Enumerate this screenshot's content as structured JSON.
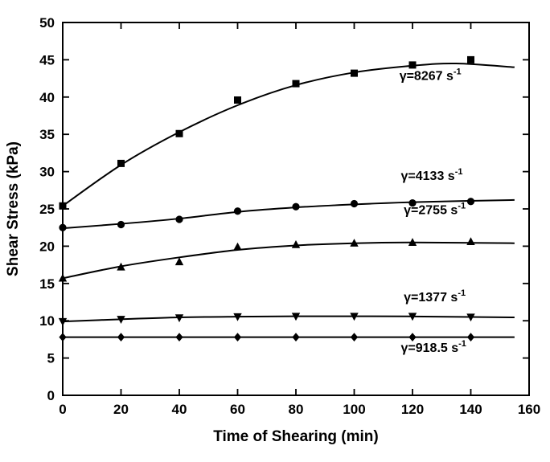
{
  "figure": {
    "background": "#ffffff",
    "ink_color": "#000000"
  },
  "chart_data": {
    "type": "scatter",
    "title": "",
    "xlabel": "Time of Shearing (min)",
    "ylabel": "Shear Stress (kPa)",
    "xlim": [
      0,
      160
    ],
    "ylim": [
      0,
      50
    ],
    "x_ticks": [
      0,
      20,
      40,
      60,
      80,
      100,
      120,
      140,
      160
    ],
    "y_ticks": [
      0,
      5,
      10,
      15,
      20,
      25,
      30,
      35,
      40,
      45,
      50
    ],
    "grid": false,
    "legend_position": "inline-annotations",
    "x": [
      0,
      20,
      40,
      60,
      80,
      100,
      120,
      140
    ],
    "series": [
      {
        "name": "gamma-8267",
        "marker": "square",
        "values": [
          25.4,
          31.1,
          35.1,
          39.6,
          41.8,
          43.2,
          44.3,
          45.0
        ],
        "curve": [
          [
            0,
            25.4
          ],
          [
            20,
            30.9
          ],
          [
            40,
            35.3
          ],
          [
            60,
            38.9
          ],
          [
            80,
            41.6
          ],
          [
            100,
            43.3
          ],
          [
            120,
            44.2
          ],
          [
            135,
            44.5
          ],
          [
            155,
            44.0
          ]
        ],
        "label_main": "γ=8267 s",
        "label_sup": "-1",
        "label_pos": [
          115.5,
          42.3
        ]
      },
      {
        "name": "gamma-4133",
        "marker": "circle",
        "values": [
          22.5,
          22.9,
          23.6,
          24.7,
          25.3,
          25.7,
          25.8,
          26.0
        ],
        "curve": [
          [
            0,
            22.4
          ],
          [
            20,
            23.0
          ],
          [
            40,
            23.7
          ],
          [
            60,
            24.6
          ],
          [
            80,
            25.2
          ],
          [
            100,
            25.6
          ],
          [
            120,
            25.9
          ],
          [
            155,
            26.2
          ]
        ],
        "label_main": "γ=4133 s",
        "label_sup": "-1",
        "label_pos": [
          116,
          28.9
        ]
      },
      {
        "name": "gamma-2755",
        "marker": "triangle-up",
        "values": [
          15.7,
          17.2,
          17.9,
          19.9,
          20.2,
          20.4,
          20.5,
          20.6
        ],
        "curve": [
          [
            0,
            15.7
          ],
          [
            20,
            17.3
          ],
          [
            40,
            18.5
          ],
          [
            60,
            19.5
          ],
          [
            80,
            20.1
          ],
          [
            100,
            20.4
          ],
          [
            120,
            20.5
          ],
          [
            155,
            20.4
          ]
        ],
        "label_main": "γ=2755 s",
        "label_sup": "-1",
        "label_pos": [
          117,
          24.3
        ]
      },
      {
        "name": "gamma-1377",
        "marker": "triangle-down",
        "values": [
          9.9,
          10.2,
          10.4,
          10.55,
          10.6,
          10.6,
          10.6,
          10.5
        ],
        "curve": [
          [
            0,
            9.9
          ],
          [
            20,
            10.2
          ],
          [
            40,
            10.45
          ],
          [
            60,
            10.55
          ],
          [
            80,
            10.6
          ],
          [
            100,
            10.6
          ],
          [
            120,
            10.58
          ],
          [
            155,
            10.45
          ]
        ],
        "label_main": "γ=1377 s",
        "label_sup": "-1",
        "label_pos": [
          117,
          12.6
        ]
      },
      {
        "name": "gamma-918",
        "marker": "diamond",
        "values": [
          7.8,
          7.8,
          7.8,
          7.8,
          7.8,
          7.8,
          7.8,
          7.8
        ],
        "curve": [
          [
            0,
            7.8
          ],
          [
            155,
            7.8
          ]
        ],
        "label_main": "γ=918.5 s",
        "label_sup": "-1",
        "label_pos": [
          116,
          5.8
        ]
      }
    ]
  }
}
